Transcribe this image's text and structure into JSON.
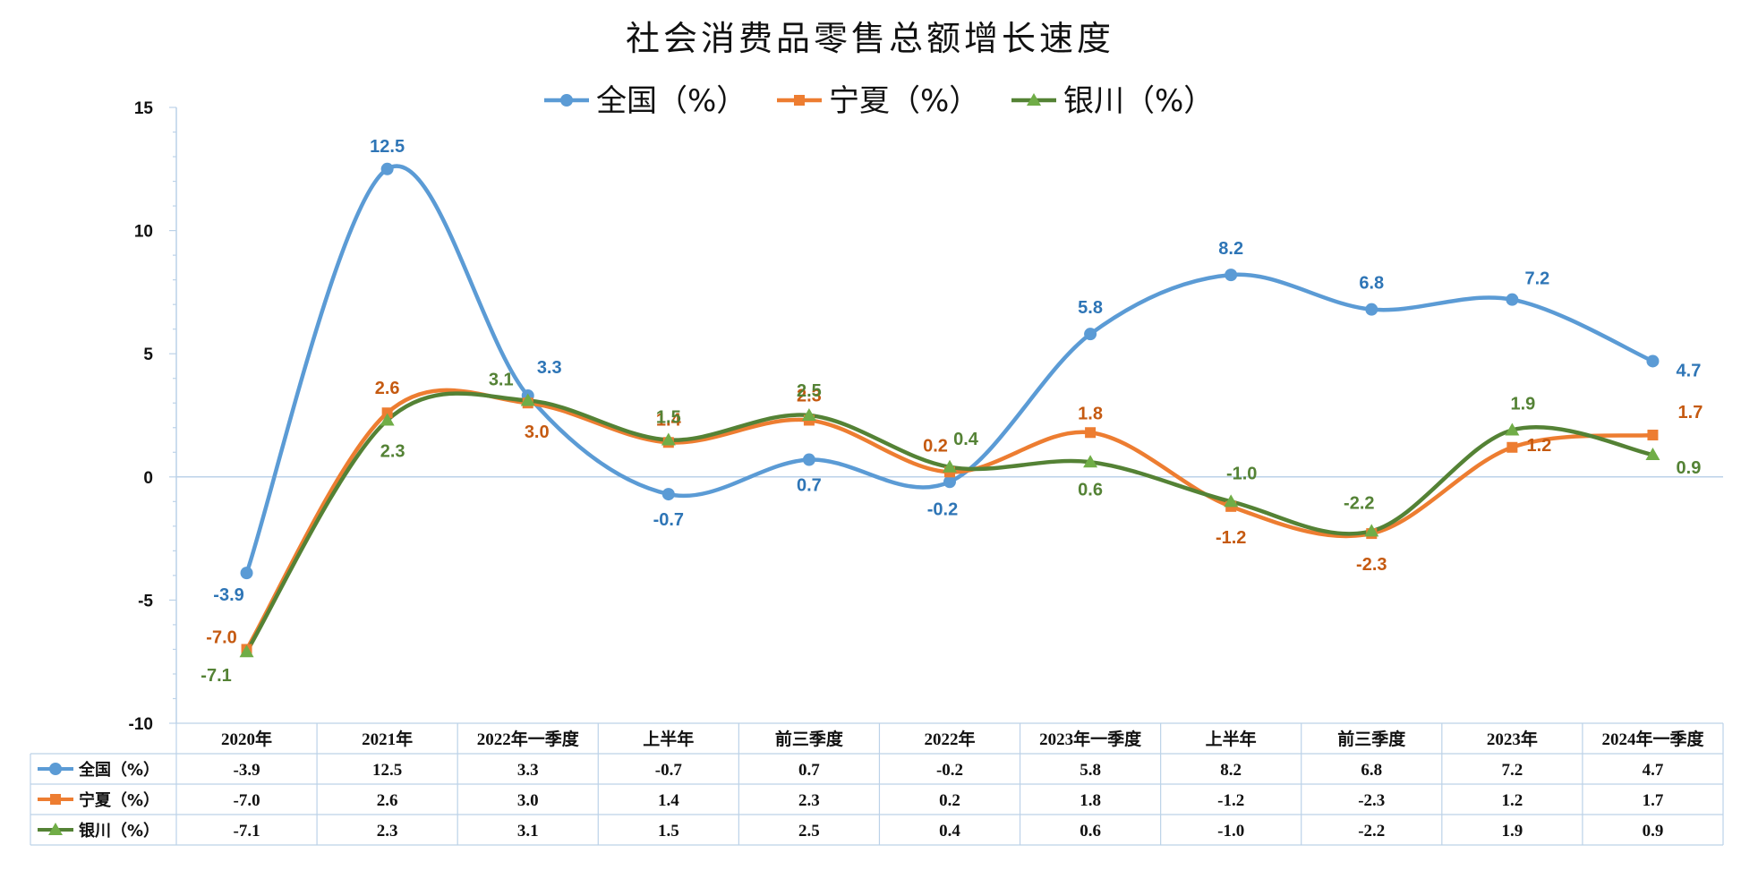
{
  "chart_data": {
    "type": "line",
    "title": "社会消费品零售总额增长速度",
    "categories": [
      "2020年",
      "2021年",
      "2022年一季度",
      "上半年",
      "前三季度",
      "2022年",
      "2023年一季度",
      "上半年",
      "前三季度",
      "2023年",
      "2024年一季度"
    ],
    "ylim": [
      -10,
      15
    ],
    "yticks": [
      -10,
      -5,
      0,
      5,
      10,
      15
    ],
    "grid": false,
    "legend_position": "top",
    "data_table": true,
    "series": [
      {
        "name": "全国（%）",
        "color": "#5B9BD5",
        "label_color": "#2E75B6",
        "marker": "circle",
        "values": [
          -3.9,
          12.5,
          3.3,
          -0.7,
          0.7,
          -0.2,
          5.8,
          8.2,
          6.8,
          7.2,
          4.7
        ],
        "labels": [
          "-3.9",
          "12.5",
          "3.3",
          "-0.7",
          "0.7",
          "-0.2",
          "5.8",
          "8.2",
          "6.8",
          "7.2",
          "4.7"
        ]
      },
      {
        "name": "宁夏（%）",
        "color": "#ED7D31",
        "label_color": "#C55A11",
        "marker": "square",
        "values": [
          -7.0,
          2.6,
          3.0,
          1.4,
          2.3,
          0.2,
          1.8,
          -1.2,
          -2.3,
          1.2,
          1.7
        ],
        "labels": [
          "-7.0",
          "2.6",
          "3.0",
          "1.4",
          "2.3",
          "0.2",
          "1.8",
          "-1.2",
          "-2.3",
          "1.2",
          "1.7"
        ]
      },
      {
        "name": "银川（%）",
        "color": "#548235",
        "label_color": "#548235",
        "marker": "triangle",
        "marker_color": "#70AD47",
        "values": [
          -7.1,
          2.3,
          3.1,
          1.5,
          2.5,
          0.4,
          0.6,
          -1.0,
          -2.2,
          1.9,
          0.9
        ],
        "labels": [
          "-7.1",
          "2.3",
          "3.1",
          "1.5",
          "2.5",
          "0.4",
          "0.6",
          "-1.0",
          "-2.2",
          "1.9",
          "0.9"
        ]
      }
    ]
  }
}
